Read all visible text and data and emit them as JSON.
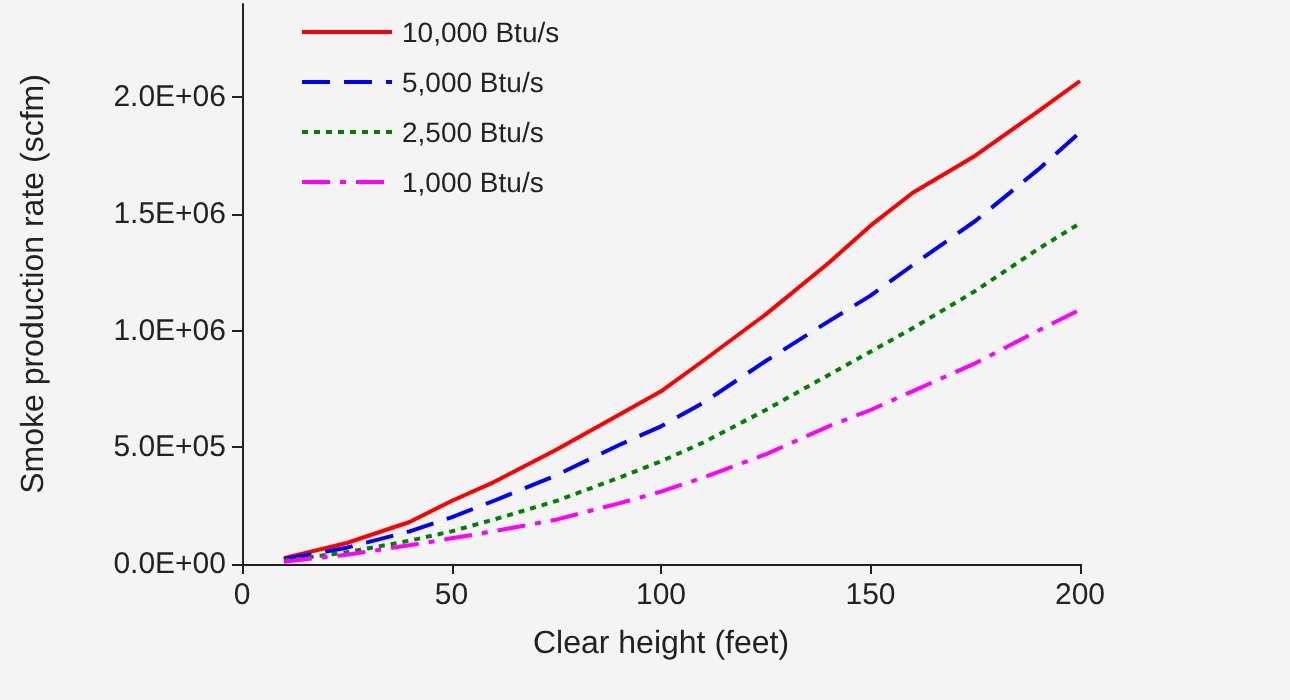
{
  "chart_data": {
    "type": "line",
    "xlabel": "Clear height (feet)",
    "ylabel": "Smoke production rate (scfm)",
    "xlim": [
      0,
      200
    ],
    "xticks": [
      0,
      50,
      100,
      150,
      200
    ],
    "ylim": [
      0,
      2400000
    ],
    "yticks": [
      {
        "value": 0,
        "label": "0.0E+00"
      },
      {
        "value": 500000,
        "label": "5.0E+05"
      },
      {
        "value": 1000000,
        "label": "1.0E+06"
      },
      {
        "value": 1500000,
        "label": "1.5E+06"
      },
      {
        "value": 2000000,
        "label": "2.0E+06"
      }
    ],
    "x": [
      10,
      25,
      40,
      50,
      60,
      75,
      90,
      100,
      110,
      125,
      140,
      150,
      160,
      175,
      190,
      200
    ],
    "grid": false,
    "legend": "top left",
    "marker": "none",
    "series": [
      {
        "name": "10,000 Btu/s",
        "color": "#ff0000",
        "line_style": "solid",
        "values": [
          25000,
          90000,
          180000,
          270000,
          350000,
          490000,
          640000,
          740000,
          870000,
          1070000,
          1290000,
          1450000,
          1590000,
          1750000,
          1940000,
          2070000
        ]
      },
      {
        "name": "5,000 Btu/s",
        "color": "#0000ff",
        "line_style": "dashed",
        "values": [
          20000,
          70000,
          140000,
          200000,
          270000,
          380000,
          510000,
          590000,
          690000,
          870000,
          1040000,
          1150000,
          1280000,
          1470000,
          1690000,
          1850000
        ]
      },
      {
        "name": "2,500 Btu/s",
        "color": "#008000",
        "line_style": "dotted",
        "values": [
          15000,
          50000,
          100000,
          140000,
          190000,
          270000,
          370000,
          440000,
          520000,
          660000,
          810000,
          910000,
          1010000,
          1170000,
          1350000,
          1460000
        ]
      },
      {
        "name": "1,000 Btu/s",
        "color": "#ff00ff",
        "line_style": "dashdot",
        "values": [
          10000,
          40000,
          80000,
          110000,
          140000,
          190000,
          260000,
          310000,
          370000,
          470000,
          590000,
          660000,
          740000,
          860000,
          1000000,
          1090000
        ]
      }
    ]
  }
}
